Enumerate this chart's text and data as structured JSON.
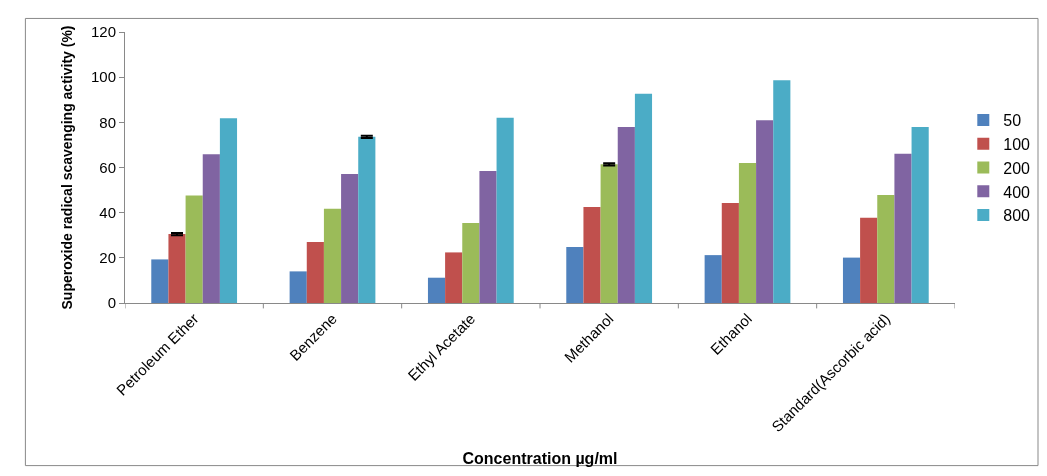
{
  "chart_data": {
    "type": "bar",
    "xlabel": "Concentration µg/ml",
    "ylabel": "Superoxide radical scavenging activity (%)",
    "categories": [
      "Petroleum Ether",
      "Benzene",
      "Ethyl Acetate",
      "Methanol",
      "Ethanol",
      "Standard(Ascorbic acid)"
    ],
    "series": [
      {
        "name": "50",
        "color": "#4f81bd",
        "values": [
          19.3,
          14.0,
          11.2,
          24.8,
          21.2,
          20.1
        ]
      },
      {
        "name": "100",
        "color": "#c0504d",
        "values": [
          30.5,
          27.0,
          22.4,
          42.5,
          44.3,
          37.8
        ],
        "errors": [
          0.5,
          null,
          null,
          null,
          null,
          null
        ]
      },
      {
        "name": "200",
        "color": "#9bbb59",
        "values": [
          47.6,
          41.7,
          35.4,
          61.4,
          62.0,
          47.8
        ],
        "errors": [
          null,
          null,
          null,
          0.5,
          null,
          null
        ]
      },
      {
        "name": "400",
        "color": "#8064a2",
        "values": [
          65.9,
          57.1,
          58.4,
          77.9,
          80.9,
          66.1
        ]
      },
      {
        "name": "800",
        "color": "#4bacc6",
        "values": [
          81.8,
          73.6,
          82.0,
          92.7,
          98.6,
          77.9
        ],
        "errors": [
          null,
          0.5,
          null,
          null,
          null,
          null
        ]
      }
    ],
    "ylim": [
      0,
      120
    ],
    "yticks": [
      0,
      20,
      40,
      60,
      80,
      100,
      120
    ],
    "legend": "right"
  }
}
